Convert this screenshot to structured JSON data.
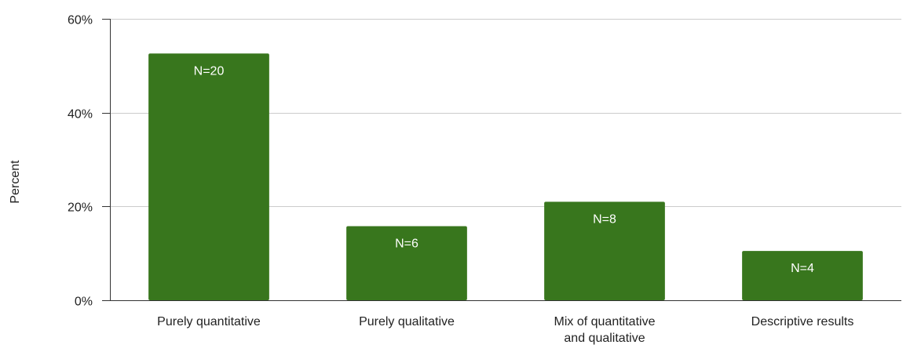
{
  "chart_data": {
    "type": "bar",
    "categories": [
      [
        "Purely quantitative"
      ],
      [
        "Purely qualitative"
      ],
      [
        "Mix of quantitative",
        "and qualitative"
      ],
      [
        "Descriptive results"
      ]
    ],
    "values": [
      52.6,
      15.8,
      21.0,
      10.5
    ],
    "data_labels": [
      "N=20",
      "N=6",
      "N=8",
      "N=4"
    ],
    "ylabel": "Percent",
    "ylim": [
      0,
      60
    ],
    "yticks": [
      {
        "value": 0,
        "label": "0%"
      },
      {
        "value": 20,
        "label": "20%"
      },
      {
        "value": 40,
        "label": "40%"
      },
      {
        "value": 60,
        "label": "60%"
      }
    ],
    "grid": true,
    "legend": "none",
    "bar_color": "#38761d",
    "label_color": "#ffffff",
    "axis_color": "#333333",
    "grid_color": "#cccccc",
    "text_color": "#222222"
  }
}
